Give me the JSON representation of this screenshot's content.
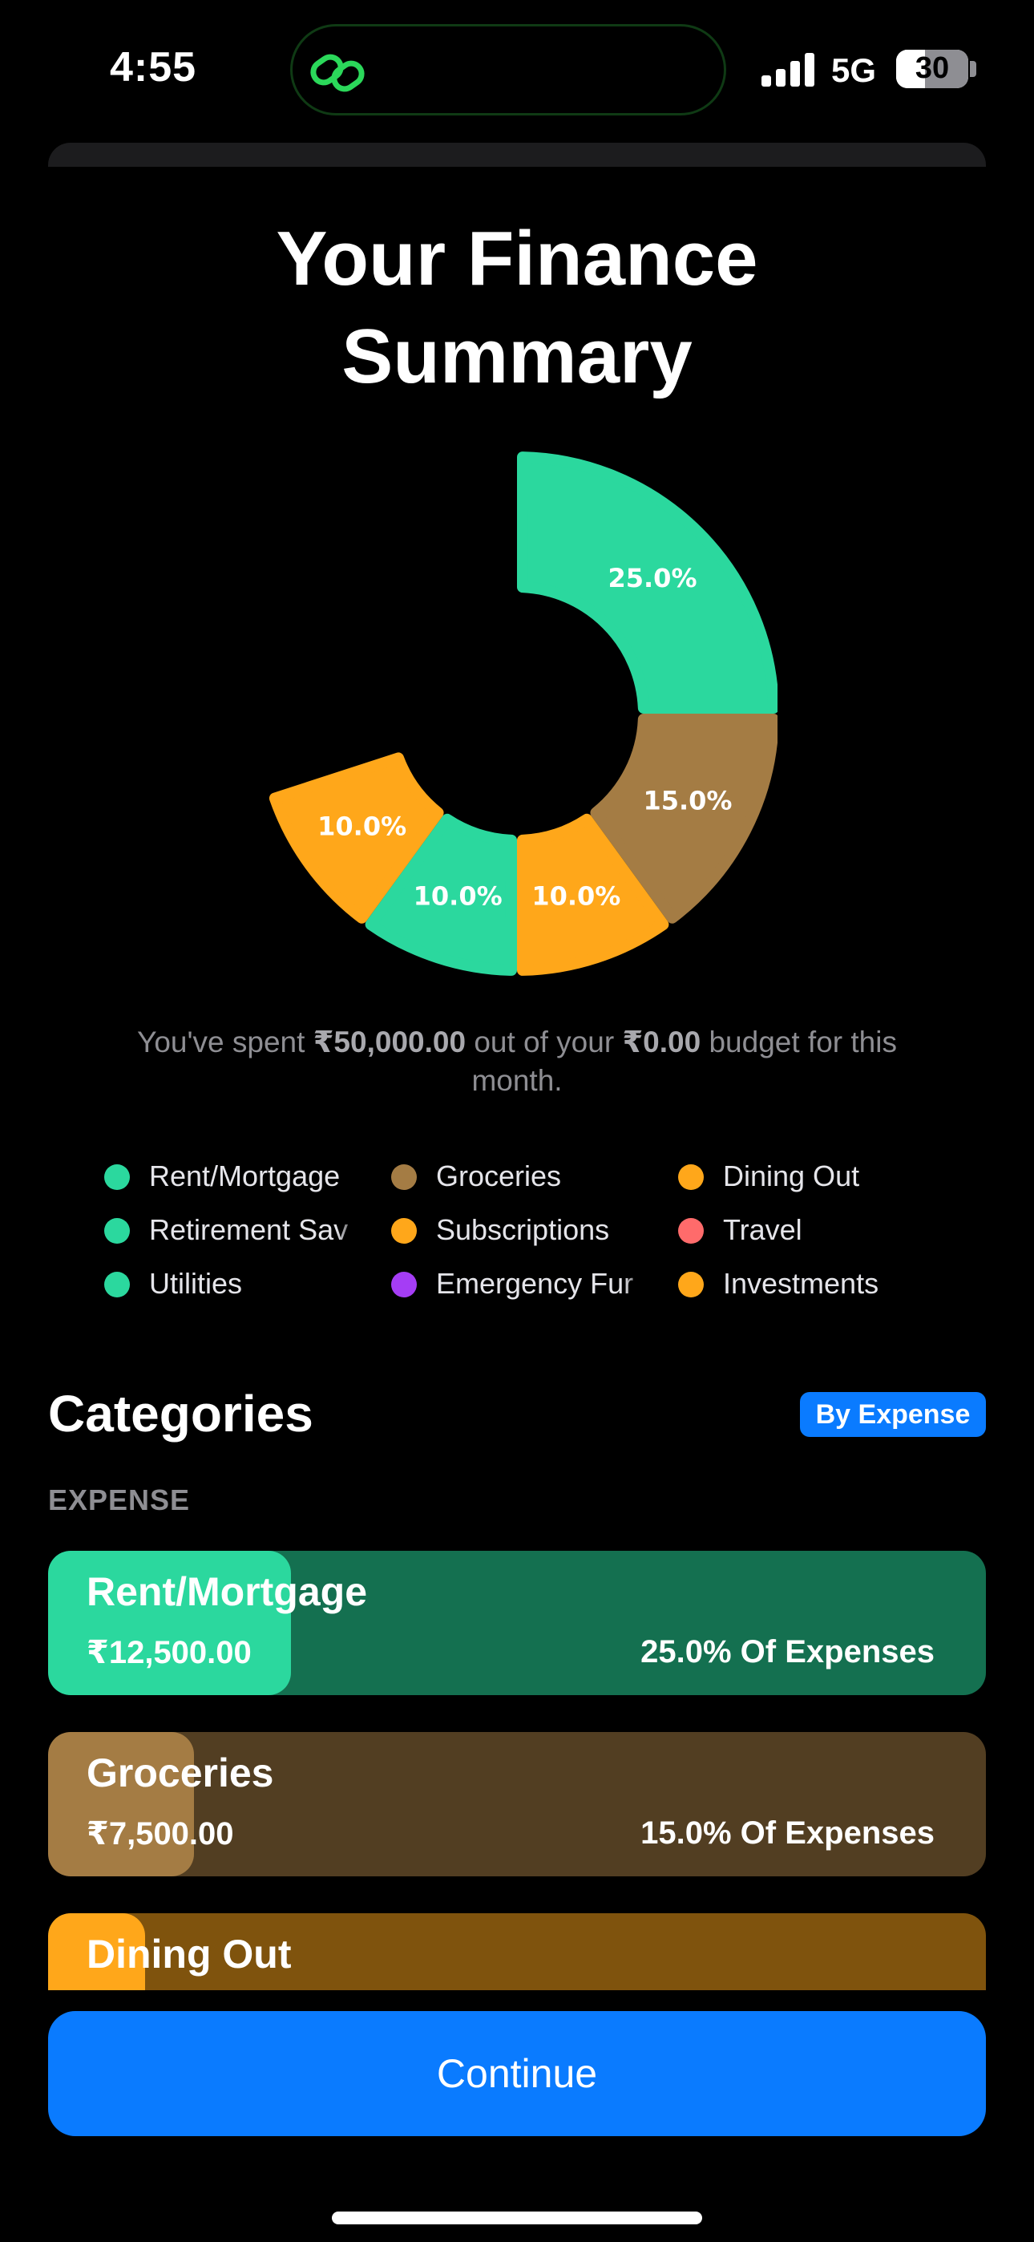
{
  "status_bar": {
    "time": "4:55",
    "network": "5G",
    "battery": "30",
    "icons": [
      "link-icon",
      "signal-icon",
      "battery-icon"
    ]
  },
  "title_line1": "Your Finance",
  "title_line2": "Summary",
  "chart_data": {
    "type": "pie",
    "style": "donut",
    "title": "",
    "slices": [
      {
        "label": "25.0%",
        "category": "Rent/Mortgage",
        "value": 25.0,
        "color": "#2bd89e"
      },
      {
        "label": "15.0%",
        "category": "Groceries",
        "value": 15.0,
        "color": "#a47c44"
      },
      {
        "label": "10.0%",
        "category": "Dining Out",
        "value": 10.0,
        "color": "#ffa71a"
      },
      {
        "label": "10.0%",
        "category": "Retirement Savings",
        "value": 10.0,
        "color": "#2bd89e"
      },
      {
        "label": "10.0%",
        "category": "Subscriptions",
        "value": 10.0,
        "color": "#ffa71a"
      }
    ]
  },
  "spent": {
    "prefix": "You've spent ",
    "amount": "₹50,000.00",
    "middle": " out of your ",
    "budget": "₹0.00",
    "suffix": " budget for this month."
  },
  "legend": [
    {
      "label": "Rent/Mortgage",
      "color": "#2bd89e"
    },
    {
      "label": "Groceries",
      "color": "#a47c44"
    },
    {
      "label": "Dining Out",
      "color": "#ffa71a"
    },
    {
      "label": "Retirement Sav",
      "color": "#2bd89e"
    },
    {
      "label": "Subscriptions",
      "color": "#ffa71a"
    },
    {
      "label": "Travel",
      "color": "#ff6b6b"
    },
    {
      "label": "Utilities",
      "color": "#2bd89e"
    },
    {
      "label": "Emergency Fur",
      "color": "#a53df5"
    },
    {
      "label": "Investments",
      "color": "#ffa71a"
    }
  ],
  "categories": {
    "heading": "Categories",
    "sort_label": "By Expense",
    "section_label": "EXPENSE",
    "items": [
      {
        "name": "Rent/Mortgage",
        "amount": "₹12,500.00",
        "percent_label": "25.0% Of Expenses",
        "share": 0.25,
        "fill_color": "#2bd89e",
        "bg_color": "#147050"
      },
      {
        "name": "Groceries",
        "amount": "₹7,500.00",
        "percent_label": "15.0% Of Expenses",
        "share": 0.15,
        "fill_color": "#a47c44",
        "bg_color": "#523e22"
      },
      {
        "name": "Dining Out",
        "amount": "",
        "percent_label": "",
        "share": 0.1,
        "fill_color": "#ffa71a",
        "bg_color": "#7f530d"
      }
    ]
  },
  "continue_label": "Continue"
}
